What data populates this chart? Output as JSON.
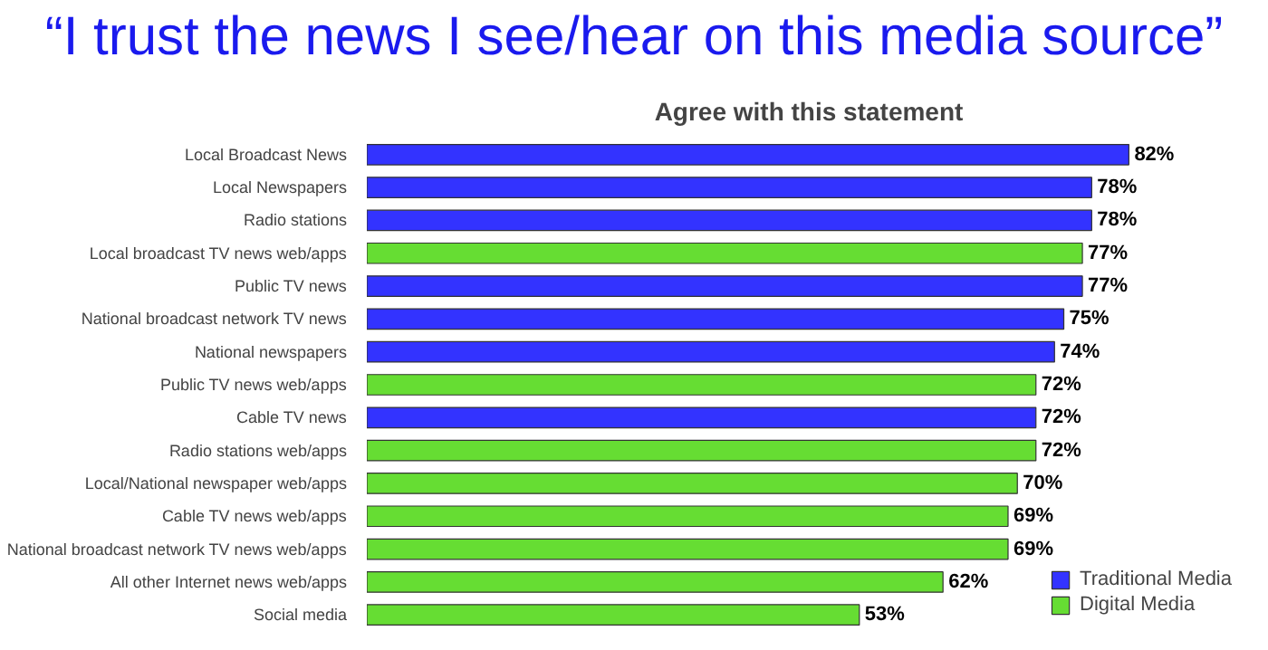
{
  "chart_data": {
    "type": "bar",
    "orientation": "horizontal",
    "title": "“I trust the news I see/hear on this media source”",
    "subtitle": "Agree with this statement",
    "categories": [
      "Local Broadcast News",
      "Local Newspapers",
      "Radio stations",
      "Local broadcast TV news web/apps",
      "Public TV news",
      "National broadcast network TV news",
      "National newspapers",
      "Public TV news web/apps",
      "Cable TV news",
      "Radio stations web/apps",
      "Local/National newspaper web/apps",
      "Cable TV news web/apps",
      "National broadcast network TV news web/apps",
      "All other Internet news web/apps",
      "Social media"
    ],
    "series": [
      {
        "name": "Traditional Media",
        "color": "#3333ff",
        "values": [
          82,
          78,
          78,
          null,
          77,
          75,
          74,
          null,
          72,
          null,
          null,
          null,
          null,
          null,
          null
        ],
        "value_labels": [
          "82%",
          "78%",
          "78%",
          null,
          "77%",
          "75%",
          "74%",
          null,
          "72%",
          null,
          null,
          null,
          null,
          null,
          null
        ]
      },
      {
        "name": "Digital Media",
        "color": "#66dd33",
        "values": [
          null,
          null,
          null,
          77,
          null,
          null,
          null,
          72,
          null,
          72,
          70,
          69,
          69,
          62,
          53
        ],
        "value_labels": [
          null,
          null,
          null,
          "77%",
          null,
          null,
          null,
          "72%",
          null,
          "72%",
          "70%",
          "69%",
          "69%",
          "62%",
          "53%"
        ]
      }
    ],
    "legend": "bottom right",
    "grid": false
  }
}
